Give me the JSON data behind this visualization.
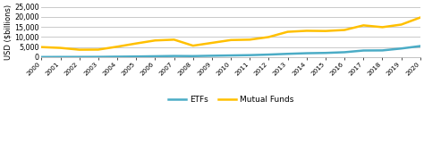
{
  "years": [
    2000,
    2001,
    2002,
    2003,
    2004,
    2005,
    2006,
    2007,
    2008,
    2009,
    2010,
    2011,
    2012,
    2013,
    2014,
    2015,
    2016,
    2017,
    2018,
    2019,
    2020
  ],
  "etfs": [
    70,
    100,
    110,
    130,
    230,
    320,
    450,
    580,
    520,
    700,
    850,
    1000,
    1280,
    1650,
    1950,
    2100,
    2450,
    3300,
    3350,
    4300,
    5500
  ],
  "mutual_funds": [
    5000,
    4600,
    3700,
    3750,
    5200,
    6800,
    8300,
    8700,
    5700,
    7100,
    8500,
    8700,
    10000,
    12600,
    13100,
    13000,
    13500,
    15800,
    14900,
    16200,
    19700
  ],
  "etf_color": "#4BACC6",
  "mf_color": "#FFC000",
  "background_color": "#FFFFFF",
  "grid_color": "#C0C0C0",
  "ylabel": "USD ($billions)",
  "ylim": [
    0,
    25000
  ],
  "yticks": [
    0,
    5000,
    10000,
    15000,
    20000,
    25000
  ],
  "legend_labels": [
    "ETFs",
    "Mutual Funds"
  ],
  "line_width": 1.8,
  "figsize": [
    4.74,
    1.88
  ],
  "dpi": 100
}
